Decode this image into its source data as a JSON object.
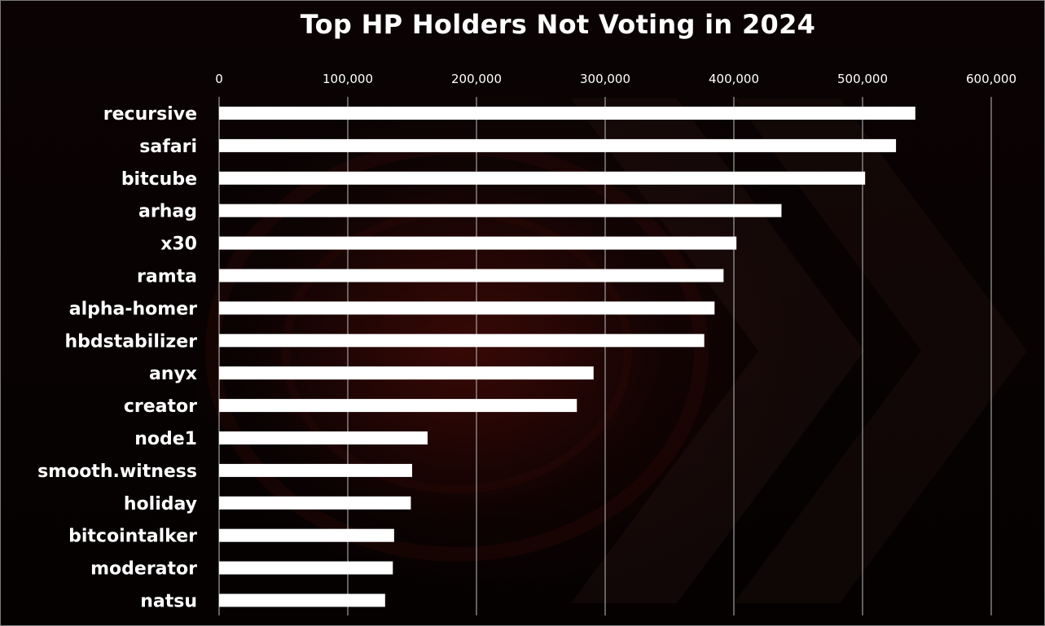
{
  "chart_data": {
    "type": "bar",
    "orientation": "horizontal",
    "title": "Top HP Holders Not Voting in 2024",
    "categories": [
      "recursive",
      "safari",
      "bitcube",
      "arhag",
      "x30",
      "ramta",
      "alpha-homer",
      "hbdstabilizer",
      "anyx",
      "creator",
      "node1",
      "smooth.witness",
      "holiday",
      "bitcointalker",
      "moderator",
      "natsu"
    ],
    "values": [
      541000,
      526000,
      502000,
      437000,
      402000,
      392000,
      385000,
      377000,
      291000,
      278000,
      162000,
      150000,
      149000,
      136000,
      135000,
      129000
    ],
    "xlim": [
      0,
      600000
    ],
    "x_ticks": [
      0,
      100000,
      200000,
      300000,
      400000,
      500000,
      600000
    ],
    "x_tick_labels": [
      "0",
      "100,000",
      "200,000",
      "300,000",
      "400,000",
      "500,000",
      "600,000"
    ],
    "x_axis_position": "top",
    "grid": true,
    "bar_color": "#ffffff",
    "text_color": "#ffffff",
    "gridline_color": "#bfbfbf",
    "background_color": "#000000"
  }
}
